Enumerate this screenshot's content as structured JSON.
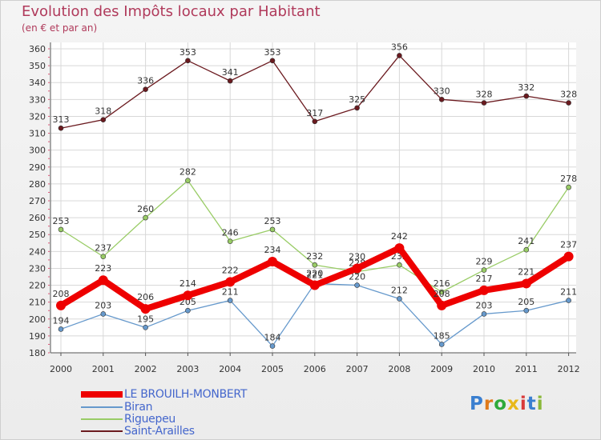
{
  "chart_data": {
    "type": "line",
    "title": "Evolution des Impôts locaux par Habitant",
    "subtitle": "(en € et par an)",
    "xlabel": "",
    "ylabel": "",
    "ylim": [
      180,
      360
    ],
    "ytick_step": 10,
    "yticks": [
      "180",
      "190",
      "200",
      "210",
      "220",
      "230",
      "240",
      "250",
      "260",
      "270",
      "280",
      "290",
      "300",
      "310",
      "320",
      "330",
      "340",
      "350",
      "360"
    ],
    "categories": [
      "2000",
      "2001",
      "2002",
      "2003",
      "2004",
      "2005",
      "2006",
      "2007",
      "2008",
      "2009",
      "2010",
      "2011",
      "2012"
    ],
    "series": [
      {
        "name": "Saint-Araille s",
        "label": "Saint-Arailles",
        "color": "#6b1a1f",
        "values": [
          313,
          318,
          336,
          353,
          341,
          353,
          317,
          325,
          356,
          330,
          328,
          332,
          328
        ]
      },
      {
        "name": "Riguepeu",
        "label": "Riguepeu",
        "color": "#99cc66",
        "values": [
          253,
          237,
          260,
          282,
          246,
          253,
          232,
          228,
          232,
          216,
          229,
          241,
          278
        ]
      },
      {
        "name": "Biran",
        "label": "Biran",
        "color": "#6699cc",
        "values": [
          194,
          203,
          195,
          205,
          211,
          184,
          221,
          220,
          212,
          185,
          203,
          205,
          211
        ]
      },
      {
        "name": "LE BROUILH-MONBERT",
        "label": "LE BROUILH-MONBERT",
        "color": "#ee0000",
        "values": [
          208,
          223,
          206,
          214,
          222,
          234,
          220,
          230,
          242,
          208,
          217,
          221,
          237
        ]
      }
    ],
    "grid": true,
    "legend": "bottom-left"
  },
  "legend_items": [
    {
      "label": "LE BROUILH-MONBERT",
      "color": "#ee0000"
    },
    {
      "label": "Biran",
      "color": "#6699cc"
    },
    {
      "label": "Riguepeu",
      "color": "#99cc66"
    },
    {
      "label": "Saint-Arailles",
      "color": "#6b1a1f"
    }
  ],
  "logo": {
    "text": "Proxiti",
    "letters": [
      "P",
      "r",
      "o",
      "x",
      "i",
      "t",
      "i"
    ],
    "colors": [
      "#3a7fd0",
      "#e07a1a",
      "#2eaa3a",
      "#e8b81a",
      "#d93a3a",
      "#3a7fd0",
      "#8ab83a"
    ]
  }
}
